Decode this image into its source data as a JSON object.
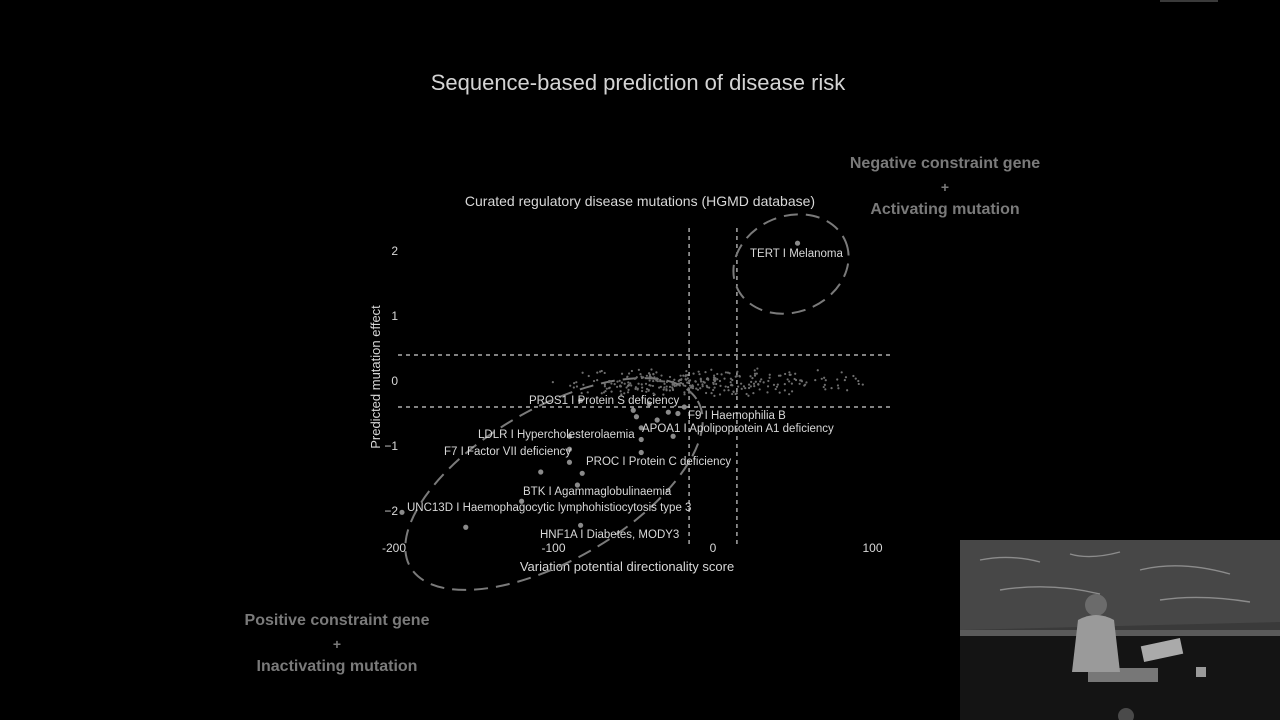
{
  "slide": {
    "title": "Sequence-based prediction of disease risk",
    "callout_negative": {
      "line1": "Negative constraint gene",
      "plus": "+",
      "line2": "Activating mutation"
    },
    "callout_positive": {
      "line1": "Positive constraint gene",
      "plus": "+",
      "line2": "Inactivating mutation"
    }
  },
  "chart_data": {
    "type": "scatter",
    "title": "Curated regulatory disease mutations  (HGMD database)",
    "xlabel": "Variation potential directionality score",
    "ylabel": "Predicted mutation effect",
    "xlim": [
      -200,
      100
    ],
    "ylim": [
      -2.5,
      2.5
    ],
    "x_ticks": [
      -200,
      -100,
      0,
      100
    ],
    "y_ticks": [
      2,
      1,
      0,
      -1,
      -2
    ],
    "x_tick_labels": [
      "-200",
      "-100",
      "0",
      "100"
    ],
    "y_tick_labels": [
      "2",
      "1",
      "0",
      "−1",
      "−2"
    ],
    "grid": false,
    "threshold_lines": {
      "x": [
        -15,
        15
      ],
      "y": [
        0.4,
        -0.4
      ]
    },
    "labeled_points": [
      {
        "x": 53,
        "y": 2.12,
        "label": "TERT I Melanoma"
      },
      {
        "x": -83,
        "y": -0.3,
        "label": "PROS1 I Protein S deficiency"
      },
      {
        "x": -22,
        "y": -0.5,
        "label": "F9 I Haemophilia B"
      },
      {
        "x": -45,
        "y": -0.72,
        "label": "APOA1 I Apolipoprotein A1 deficiency"
      },
      {
        "x": -90,
        "y": -0.85,
        "label": "LDLR I Hypercholesterolaemia"
      },
      {
        "x": -90,
        "y": -1.05,
        "label": "F7 I Factor VII deficiency"
      },
      {
        "x": -45,
        "y": -1.1,
        "label": "PROC I Protein C deficiency"
      },
      {
        "x": -82,
        "y": -1.42,
        "label": "BTK I Agammaglobulinaemia"
      },
      {
        "x": -195,
        "y": -2.02,
        "label": "UNC13D I Haemophagocytic lymphohistiocytosis type 3"
      },
      {
        "x": -83,
        "y": -2.22,
        "label": "HNF1A I Diabetes, MODY3"
      }
    ],
    "other_points": [
      {
        "x": -155,
        "y": -2.25
      },
      {
        "x": -120,
        "y": -1.85
      },
      {
        "x": -108,
        "y": -1.4
      },
      {
        "x": -90,
        "y": -1.25
      },
      {
        "x": -85,
        "y": -1.6
      },
      {
        "x": -50,
        "y": -0.45
      },
      {
        "x": -48,
        "y": -0.55
      },
      {
        "x": -45,
        "y": -0.9
      },
      {
        "x": -40,
        "y": -0.35
      },
      {
        "x": -35,
        "y": -0.6
      },
      {
        "x": -28,
        "y": -0.48
      },
      {
        "x": -25,
        "y": -0.85
      },
      {
        "x": -18,
        "y": -0.4
      }
    ],
    "annotations": [
      "TERT I Melanoma",
      "PROS1 I Protein S deficiency",
      "F9 I Haemophilia B",
      "APOA1 I Apolipoprotein A1 deficiency",
      "LDLR I Hypercholesterolaemia",
      "F7 I Factor VII deficiency",
      "PROC I Protein C deficiency",
      "BTK I Agammaglobulinaemia",
      "UNC13D I Haemophagocytic lymphohistiocytosis type 3",
      "HNF1A I Diabetes, MODY3"
    ],
    "colors": {
      "points": "#8a8a8a",
      "text": "#d8d8d8",
      "guides": "#cfcfcf",
      "ellipse": "#7a7a7a"
    }
  }
}
